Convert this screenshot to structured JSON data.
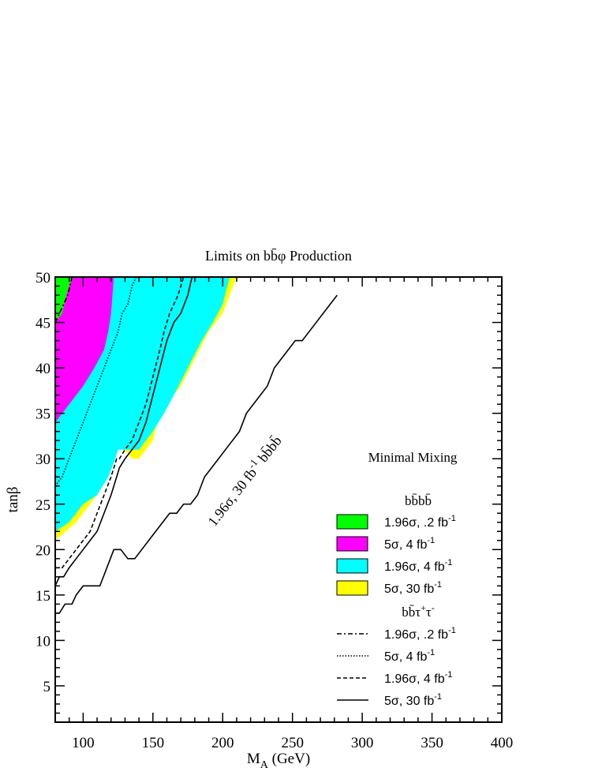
{
  "chart_data": {
    "type": "area",
    "title": "Limits on bb̄φ Production",
    "xlabel": "M",
    "xlabel_sub": "A",
    "xlabel_unit": " (GeV)",
    "ylabel": "tanβ",
    "xlim": [
      80,
      400
    ],
    "ylim": [
      1,
      50
    ],
    "x_ticks": [
      100,
      150,
      200,
      250,
      300,
      350,
      400
    ],
    "y_ticks": [
      5,
      10,
      15,
      20,
      25,
      30,
      35,
      40,
      45,
      50
    ],
    "grid": false,
    "scenario_label": "Minimal Mixing",
    "legend_position": "bottom-right",
    "curve_annotation": {
      "text_main": "1.96σ, 30 fb",
      "text_sup": "-1",
      "text_tail": " bb̄bb̄"
    },
    "filled_regions": {
      "header": "bb̄bb̄",
      "series": [
        {
          "name_main": "5σ, 30 fb",
          "name_sup": "-1",
          "color": "#ffff00",
          "boundary": [
            [
              80,
              21
            ],
            [
              95,
              23
            ],
            [
              110,
              26
            ],
            [
              118,
              28
            ],
            [
              125,
              32
            ],
            [
              130,
              31
            ],
            [
              135,
              30
            ],
            [
              140,
              30
            ],
            [
              150,
              32
            ],
            [
              155,
              35
            ],
            [
              160,
              36
            ],
            [
              170,
              38
            ],
            [
              180,
              41
            ],
            [
              190,
              44
            ],
            [
              200,
              46
            ],
            [
              205,
              48
            ],
            [
              210,
              50
            ]
          ]
        },
        {
          "name_main": "1.96σ, 4 fb",
          "name_sup": "-1",
          "color": "#00ffff",
          "boundary": [
            [
              80,
              22
            ],
            [
              90,
              23
            ],
            [
              100,
              25
            ],
            [
              110,
              26
            ],
            [
              118,
              28
            ],
            [
              123,
              30
            ],
            [
              125,
              31
            ],
            [
              130,
              31
            ],
            [
              140,
              31
            ],
            [
              150,
              33
            ],
            [
              158,
              35
            ],
            [
              165,
              37
            ],
            [
              175,
              40
            ],
            [
              185,
              43
            ],
            [
              193,
              45
            ],
            [
              200,
              47
            ],
            [
              205,
              50
            ]
          ]
        },
        {
          "name_main": "5σ, 4 fb",
          "name_sup": "-1",
          "color": "#ff00ff",
          "boundary": [
            [
              80,
              34
            ],
            [
              90,
              36
            ],
            [
              100,
              38
            ],
            [
              108,
              40
            ],
            [
              115,
              42
            ],
            [
              118,
              44
            ],
            [
              120,
              46
            ],
            [
              121,
              48
            ],
            [
              122,
              50
            ]
          ]
        },
        {
          "name_main": "1.96σ, .2 fb",
          "name_sup": "-1",
          "color": "#00ff00",
          "boundary": [
            [
              80,
              45
            ],
            [
              85,
              46
            ],
            [
              88,
              48
            ],
            [
              90,
              49
            ],
            [
              93,
              50
            ]
          ]
        }
      ]
    },
    "lines": {
      "header_main": "bb̄τ",
      "header_sup1": "+",
      "header_mid": "τ",
      "header_sup2": "-",
      "series": [
        {
          "name_main": "1.96σ, .2 fb",
          "name_sup": "-1",
          "dash": "6,3,2,3",
          "x": [
            80,
            83,
            86,
            89,
            92
          ],
          "y": [
            45,
            46,
            47,
            48,
            50
          ]
        },
        {
          "name_main": "5σ, 4 fb",
          "name_sup": "-1",
          "dash": "1.5,2",
          "x": [
            80,
            85,
            90,
            95,
            100,
            105,
            110,
            115,
            120,
            125,
            128,
            132,
            135,
            138
          ],
          "y": [
            27,
            28,
            30,
            32,
            34,
            36,
            38,
            40,
            42,
            44,
            46,
            47,
            49,
            50
          ]
        },
        {
          "name_main": "1.96σ, 4 fb",
          "name_sup": "-1",
          "dash": "5,3",
          "x": [
            80,
            85,
            90,
            95,
            100,
            105,
            110,
            115,
            120,
            122,
            124,
            126,
            130,
            135,
            140,
            145,
            150,
            155,
            158,
            162,
            165,
            168,
            172
          ],
          "y": [
            18,
            18,
            19,
            20,
            21,
            22,
            24,
            26,
            28,
            29,
            30,
            30,
            31,
            32,
            34,
            36,
            39,
            42,
            44,
            46,
            47,
            48,
            50
          ]
        },
        {
          "name_main": "5σ, 30 fb",
          "name_sup": "-1",
          "dash": "",
          "x": [
            80,
            83,
            86,
            90,
            95,
            100,
            105,
            110,
            115,
            120,
            122,
            124,
            126,
            130,
            135,
            140,
            145,
            150,
            155,
            160,
            165,
            170,
            175,
            178
          ],
          "y": [
            16,
            17,
            17,
            18,
            19,
            20,
            21,
            22,
            24,
            26,
            27,
            28,
            29,
            30,
            31,
            32,
            34,
            37,
            40,
            43,
            45,
            46,
            48,
            50
          ]
        }
      ]
    },
    "reference_curve": {
      "x": [
        80,
        83,
        87,
        92,
        95,
        100,
        105,
        112,
        117,
        122,
        127,
        132,
        137,
        142,
        147,
        152,
        157,
        162,
        167,
        172,
        177,
        182,
        187,
        192,
        197,
        202,
        207,
        212,
        217,
        222,
        227,
        232,
        237,
        242,
        247,
        252,
        257,
        262,
        267,
        272,
        277,
        282
      ],
      "y": [
        13,
        13,
        14,
        14,
        15,
        16,
        16,
        16,
        18,
        20,
        20,
        19,
        19,
        20,
        21,
        22,
        23,
        24,
        24,
        25,
        25,
        26,
        28,
        29,
        30,
        31,
        32,
        33,
        35,
        36,
        37,
        38,
        40,
        41,
        42,
        43,
        43,
        44,
        45,
        46,
        47,
        48
      ]
    }
  }
}
